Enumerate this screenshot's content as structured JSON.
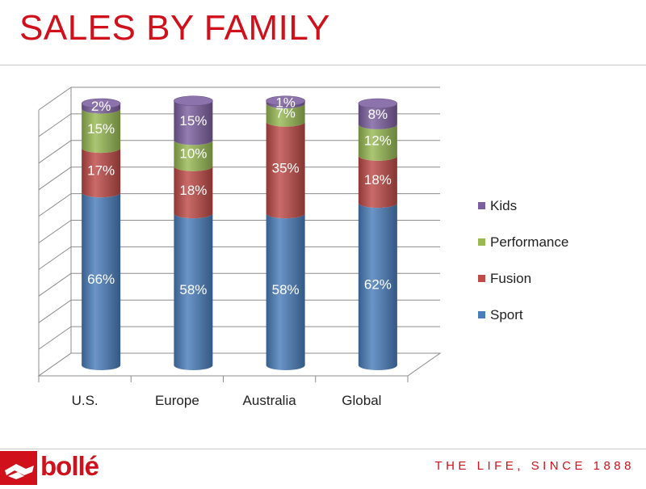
{
  "slide": {
    "title": "SALES BY FAMILY",
    "tagline": "THE LIFE, SINCE 1888",
    "logo_text": "bollé"
  },
  "colors": {
    "title": "#d0101a",
    "Sport": "#4a7ebb",
    "Fusion": "#be4b48",
    "Performance": "#98b954",
    "Kids": "#7d60a0"
  },
  "chart_data": {
    "type": "bar",
    "stacked": true,
    "style": "3d-cylinder",
    "categories": [
      "U.S.",
      "Europe",
      "Australia",
      "Global"
    ],
    "series": [
      {
        "name": "Sport",
        "values": [
          66,
          58,
          58,
          62
        ],
        "labels": [
          "66%",
          "58%",
          "58%",
          "62%"
        ]
      },
      {
        "name": "Fusion",
        "values": [
          17,
          18,
          35,
          18
        ],
        "labels": [
          "17%",
          "18%",
          "35%",
          "18%"
        ]
      },
      {
        "name": "Performance",
        "values": [
          15,
          10,
          7,
          12
        ],
        "labels": [
          "15%",
          "10%",
          "7%",
          "12%"
        ]
      },
      {
        "name": "Kids",
        "values": [
          2,
          15,
          1,
          8
        ],
        "labels": [
          "2%",
          "15%",
          "1%",
          "8%"
        ]
      }
    ],
    "legend_order": [
      "Kids",
      "Performance",
      "Fusion",
      "Sport"
    ],
    "ylim": [
      0,
      100
    ],
    "grid": true,
    "legend_position": "right"
  }
}
